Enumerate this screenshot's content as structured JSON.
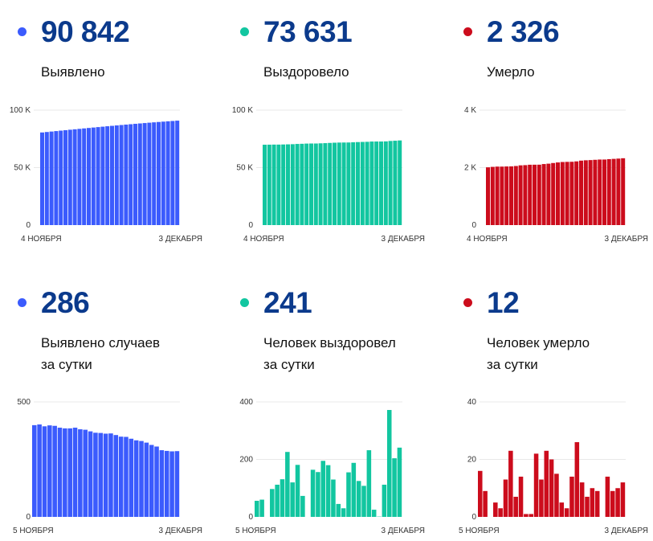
{
  "colors": {
    "blue": "#3b5bfd",
    "green": "#12c6a0",
    "red": "#cc0c1c",
    "number": "#0b3a8c"
  },
  "panels": [
    {
      "number": "90 842",
      "label_lines": [
        "Выявлено"
      ],
      "color": "blue",
      "icon": "dot-icon"
    },
    {
      "number": "73 631",
      "label_lines": [
        "Выздоровело"
      ],
      "color": "green",
      "icon": "dot-icon"
    },
    {
      "number": "2 326",
      "label_lines": [
        "Умерло"
      ],
      "color": "red",
      "icon": "dot-icon"
    },
    {
      "number": "286",
      "label_lines": [
        "Выявлено случаев",
        "за сутки"
      ],
      "color": "blue",
      "icon": "dot-icon"
    },
    {
      "number": "241",
      "label_lines": [
        "Человек выздоровел",
        "за сутки"
      ],
      "color": "green",
      "icon": "dot-icon"
    },
    {
      "number": "12",
      "label_lines": [
        "Человек умерло",
        "за сутки"
      ],
      "color": "red",
      "icon": "dot-icon"
    }
  ],
  "chart_data": [
    {
      "type": "bar",
      "ylim": [
        0,
        100000
      ],
      "yticks": [
        "0",
        "50 K",
        "100 K"
      ],
      "ytick_values": [
        0,
        50000,
        100000
      ],
      "x_start": "4 НОЯБРЯ",
      "x_end": "3 ДЕКАБРЯ",
      "grid": true,
      "values": [
        80573,
        80972,
        81374,
        81768,
        82166,
        82562,
        82950,
        83335,
        83720,
        84108,
        84489,
        84868,
        85240,
        85606,
        85971,
        86333,
        86696,
        87052,
        87401,
        87749,
        88089,
        88422,
        88752,
        89075,
        89388,
        89694,
        89984,
        90271,
        90556,
        90842
      ]
    },
    {
      "type": "bar",
      "ylim": [
        0,
        100000
      ],
      "yticks": [
        "0",
        "50 K",
        "100 K"
      ],
      "ytick_values": [
        0,
        50000,
        100000
      ],
      "x_start": "4 НОЯБРЯ",
      "x_end": "3 ДЕКАБРЯ",
      "grid": true,
      "values": [
        69912,
        69968,
        70028,
        70028,
        70125,
        70237,
        70368,
        70594,
        70714,
        70895,
        70968,
        70968,
        71132,
        71288,
        71483,
        71663,
        71793,
        71838,
        71868,
        72023,
        72211,
        72336,
        72444,
        72676,
        72701,
        72702,
        72814,
        73186,
        73390,
        73631
      ]
    },
    {
      "type": "bar",
      "ylim": [
        0,
        4000
      ],
      "yticks": [
        "0",
        "2 K",
        "4 K"
      ],
      "ytick_values": [
        0,
        2000,
        4000
      ],
      "x_start": "4 НОЯБРЯ",
      "x_end": "3 ДЕКАБРЯ",
      "grid": true,
      "values": [
        2010,
        2026,
        2035,
        2035,
        2040,
        2043,
        2056,
        2079,
        2086,
        2100,
        2101,
        2102,
        2124,
        2137,
        2160,
        2180,
        2195,
        2200,
        2203,
        2217,
        2243,
        2255,
        2262,
        2272,
        2281,
        2281,
        2295,
        2304,
        2314,
        2326
      ]
    },
    {
      "type": "bar",
      "ylim": [
        0,
        500
      ],
      "yticks": [
        "0",
        "500"
      ],
      "ytick_values": [
        0,
        500
      ],
      "x_start": "5 НОЯБРЯ",
      "x_end": "3 ДЕКАБРЯ",
      "grid": true,
      "values": [
        399,
        402,
        394,
        398,
        396,
        388,
        385,
        385,
        388,
        381,
        379,
        372,
        366,
        365,
        362,
        363,
        356,
        349,
        348,
        340,
        333,
        330,
        323,
        313,
        306,
        290,
        287,
        285,
        286
      ]
    },
    {
      "type": "bar",
      "ylim": [
        0,
        400
      ],
      "yticks": [
        "0",
        "200",
        "400"
      ],
      "ytick_values": [
        0,
        200,
        400
      ],
      "x_start": "5 НОЯБРЯ",
      "x_end": "3 ДЕКАБРЯ",
      "grid": true,
      "values": [
        56,
        60,
        0,
        97,
        112,
        131,
        226,
        120,
        181,
        73,
        0,
        164,
        156,
        195,
        180,
        130,
        45,
        30,
        155,
        188,
        125,
        108,
        232,
        25,
        1,
        112,
        372,
        204,
        241
      ]
    },
    {
      "type": "bar",
      "ylim": [
        0,
        40
      ],
      "yticks": [
        "0",
        "20",
        "40"
      ],
      "ytick_values": [
        0,
        20,
        40
      ],
      "x_start": "5 НОЯБРЯ",
      "x_end": "3 ДЕКАБРЯ",
      "grid": true,
      "values": [
        16,
        9,
        0,
        5,
        3,
        13,
        23,
        7,
        14,
        1,
        1,
        22,
        13,
        23,
        20,
        15,
        5,
        3,
        14,
        26,
        12,
        7,
        10,
        9,
        0,
        14,
        9,
        10,
        12
      ]
    }
  ]
}
